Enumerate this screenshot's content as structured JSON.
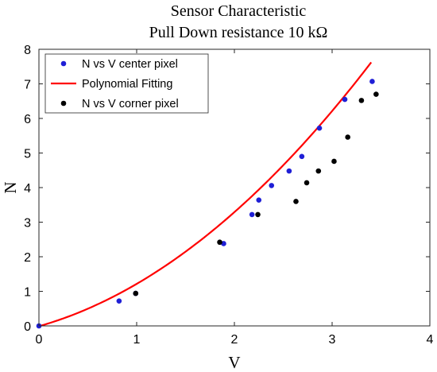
{
  "chart_data": {
    "type": "scatter",
    "title": "Sensor Characteristic",
    "subtitle": "Pull Down resistance 10 kΩ",
    "xlabel": "V",
    "ylabel": "N",
    "xlim": [
      0,
      4
    ],
    "ylim": [
      0,
      8
    ],
    "xticks": [
      "0",
      "1",
      "2",
      "3",
      "4"
    ],
    "yticks": [
      "0",
      "1",
      "2",
      "3",
      "4",
      "5",
      "6",
      "7",
      "8"
    ],
    "grid": false,
    "legend_position": "top-left",
    "series": [
      {
        "name": "N vs V center pixel",
        "kind": "scatter",
        "color": "#1f1fd6",
        "points": [
          {
            "x": 0.0,
            "y": 0.0
          },
          {
            "x": 0.82,
            "y": 0.72
          },
          {
            "x": 0.99,
            "y": 0.94
          },
          {
            "x": 1.89,
            "y": 2.38
          },
          {
            "x": 2.18,
            "y": 3.22
          },
          {
            "x": 2.25,
            "y": 3.64
          },
          {
            "x": 2.38,
            "y": 4.06
          },
          {
            "x": 2.56,
            "y": 4.48
          },
          {
            "x": 2.69,
            "y": 4.9
          },
          {
            "x": 2.87,
            "y": 5.72
          },
          {
            "x": 3.13,
            "y": 6.55
          },
          {
            "x": 3.41,
            "y": 7.07
          }
        ]
      },
      {
        "name": "Polynomial Fitting",
        "kind": "line",
        "color": "#ff0000",
        "coefficients": [
          -0.01,
          0.8,
          0.425
        ],
        "x_range": [
          0,
          3.4
        ]
      },
      {
        "name": "N vs V corner pixel",
        "kind": "scatter",
        "color": "#000000",
        "points": [
          {
            "x": 0.99,
            "y": 0.94
          },
          {
            "x": 1.85,
            "y": 2.42
          },
          {
            "x": 2.24,
            "y": 3.22
          },
          {
            "x": 2.63,
            "y": 3.6
          },
          {
            "x": 2.74,
            "y": 4.14
          },
          {
            "x": 2.86,
            "y": 4.48
          },
          {
            "x": 3.02,
            "y": 4.76
          },
          {
            "x": 3.16,
            "y": 5.46
          },
          {
            "x": 3.3,
            "y": 6.52
          },
          {
            "x": 3.45,
            "y": 6.7
          }
        ]
      }
    ]
  }
}
